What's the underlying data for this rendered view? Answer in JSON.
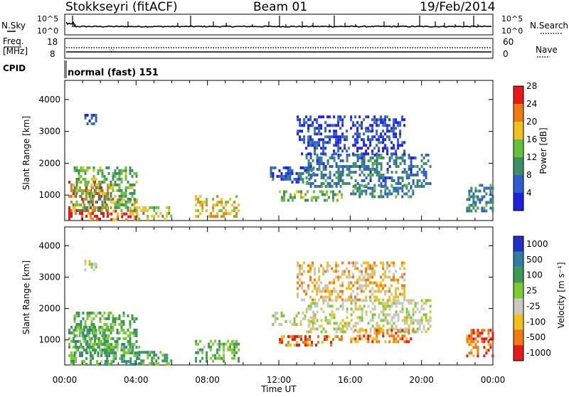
{
  "header": {
    "station": "Stokkseyri (fitACF)",
    "beam": "Beam 01",
    "date": "19/Feb/2014"
  },
  "top_panel": {
    "left_label": "N.Sky",
    "right_label": "N.Search",
    "left_ticks": [
      "10^5",
      "10^0"
    ],
    "right_ticks": [
      "10^5",
      "10^0"
    ]
  },
  "freq_panel": {
    "left_label_line1": "Freq.",
    "left_label_line2": "[MHz]",
    "right_label": "Nave",
    "left_ticks": [
      "18",
      "8"
    ],
    "right_ticks": [
      "60",
      "0"
    ]
  },
  "cpid": {
    "label": "CPID",
    "value": "normal (fast) 151"
  },
  "x_axis": {
    "label": "Time UT",
    "ticks": [
      "00:00",
      "04:00",
      "08:00",
      "12:00",
      "16:00",
      "20:00",
      "00:00"
    ]
  },
  "chart_data": [
    {
      "type": "heatmap",
      "title": "Power",
      "ylabel": "Slant Range [km]",
      "xlabel": "",
      "y_ticks": [
        "1000",
        "2000",
        "3000",
        "4000"
      ],
      "ylim": [
        200,
        4600
      ],
      "colorbar_label": "Power [dB]",
      "colorbar_ticks": [
        "4",
        "8",
        "12",
        "16",
        "20",
        "24",
        "28"
      ],
      "colors": [
        "#2020e0",
        "#2f5fcc",
        "#3d8f65",
        "#66c23a",
        "#f0c020",
        "#f07a10",
        "#e81818"
      ],
      "regions": [
        {
          "t": [
            0.2,
            2.4
          ],
          "r": [
            250,
            1450
          ],
          "level": 0.9
        },
        {
          "t": [
            2.2,
            4.2
          ],
          "r": [
            250,
            900
          ],
          "level": 0.8
        },
        {
          "t": [
            0.5,
            4.0
          ],
          "r": [
            500,
            1900
          ],
          "level": 0.45
        },
        {
          "t": [
            4.0,
            6.0
          ],
          "r": [
            250,
            650
          ],
          "level": 0.55
        },
        {
          "t": [
            7.3,
            9.8
          ],
          "r": [
            300,
            1000
          ],
          "level": 0.65
        },
        {
          "t": [
            1.1,
            1.8
          ],
          "r": [
            3250,
            3550
          ],
          "level": 0.15
        },
        {
          "t": [
            11.5,
            14.0
          ],
          "r": [
            1450,
            1900
          ],
          "level": 0.2
        },
        {
          "t": [
            13.5,
            20.5
          ],
          "r": [
            1300,
            2300
          ],
          "level": 0.25
        },
        {
          "t": [
            12.0,
            15.5
          ],
          "r": [
            800,
            1150
          ],
          "level": 0.45
        },
        {
          "t": [
            16.0,
            19.5
          ],
          "r": [
            950,
            1350
          ],
          "level": 0.3
        },
        {
          "t": [
            22.5,
            24.0
          ],
          "r": [
            500,
            1350
          ],
          "level": 0.3
        },
        {
          "t": [
            13.0,
            19.0
          ],
          "r": [
            2300,
            3500
          ],
          "level": 0.1
        }
      ]
    },
    {
      "type": "heatmap",
      "title": "Velocity",
      "ylabel": "Slant Range [km]",
      "xlabel": "Time UT",
      "y_ticks": [
        "1000",
        "2000",
        "3000",
        "4000"
      ],
      "ylim": [
        200,
        4600
      ],
      "colorbar_label": "Velocity [m s⁻¹]",
      "colorbar_ticks": [
        "1000",
        "500",
        "100",
        "25",
        "-25",
        "-100",
        "-500",
        "-1000"
      ],
      "colors": [
        "#2030c8",
        "#2f7fa0",
        "#3d9a55",
        "#7ccc30",
        "#c8c8c0",
        "#f0c020",
        "#f07a10",
        "#e81818"
      ],
      "regions": [
        {
          "t": [
            0.2,
            2.4
          ],
          "r": [
            250,
            1450
          ],
          "level": 0.35
        },
        {
          "t": [
            2.2,
            4.2
          ],
          "r": [
            250,
            900
          ],
          "level": 0.3
        },
        {
          "t": [
            0.5,
            4.0
          ],
          "r": [
            500,
            1900
          ],
          "level": 0.35
        },
        {
          "t": [
            4.0,
            6.0
          ],
          "r": [
            250,
            650
          ],
          "level": 0.3
        },
        {
          "t": [
            7.3,
            9.8
          ],
          "r": [
            300,
            1000
          ],
          "level": 0.38
        },
        {
          "t": [
            1.1,
            1.8
          ],
          "r": [
            3250,
            3550
          ],
          "level": 0.55
        },
        {
          "t": [
            11.5,
            14.0
          ],
          "r": [
            1450,
            1900
          ],
          "level": 0.55
        },
        {
          "t": [
            13.5,
            20.5
          ],
          "r": [
            1300,
            2300
          ],
          "level": 0.55
        },
        {
          "t": [
            12.0,
            15.5
          ],
          "r": [
            800,
            1150
          ],
          "level": 0.85
        },
        {
          "t": [
            16.0,
            19.5
          ],
          "r": [
            950,
            1350
          ],
          "level": 0.85
        },
        {
          "t": [
            22.5,
            24.0
          ],
          "r": [
            500,
            1350
          ],
          "level": 0.9
        },
        {
          "t": [
            13.0,
            19.0
          ],
          "r": [
            2300,
            3500
          ],
          "level": 0.7
        }
      ]
    }
  ]
}
